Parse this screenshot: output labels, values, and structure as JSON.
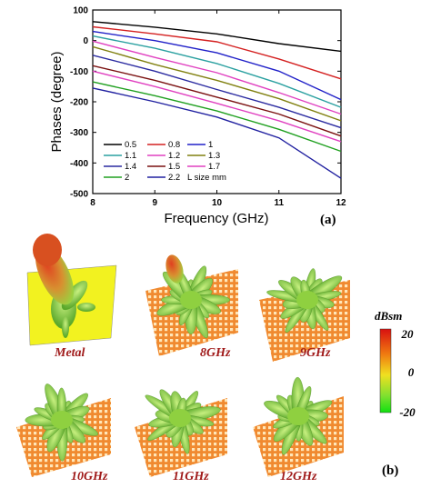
{
  "chart_data": {
    "type": "line",
    "panel_label": "(a)",
    "xlabel": "Frequency (GHz)",
    "ylabel": "Phases (degree)",
    "xlim": [
      8,
      12
    ],
    "ylim": [
      -500,
      100
    ],
    "xticks": [
      "8",
      "9",
      "10",
      "11",
      "12"
    ],
    "yticks": [
      "100",
      "0",
      "-100",
      "-200",
      "-300",
      "-400",
      "-500"
    ],
    "legend_title": "L size mm",
    "legend_location": "lower-left",
    "grid": false,
    "x": [
      8,
      9,
      10,
      11,
      12
    ],
    "series": [
      {
        "name": "0.5",
        "color": "#000000",
        "values": [
          62,
          44,
          22,
          -10,
          -35
        ]
      },
      {
        "name": "0.8",
        "color": "#d42020",
        "values": [
          45,
          22,
          -4,
          -60,
          -125
        ]
      },
      {
        "name": "1",
        "color": "#2020c8",
        "values": [
          30,
          0,
          -40,
          -100,
          -193
        ]
      },
      {
        "name": "1.1",
        "color": "#2aa0a0",
        "values": [
          15,
          -25,
          -75,
          -140,
          -218
        ]
      },
      {
        "name": "1.2",
        "color": "#e040c0",
        "values": [
          -2,
          -55,
          -105,
          -170,
          -240
        ]
      },
      {
        "name": "1.3",
        "color": "#808010",
        "values": [
          -20,
          -78,
          -130,
          -190,
          -262
        ]
      },
      {
        "name": "1.4",
        "color": "#2a2aa0",
        "values": [
          -48,
          -100,
          -160,
          -218,
          -285
        ]
      },
      {
        "name": "1.5",
        "color": "#7a1010",
        "values": [
          -82,
          -130,
          -185,
          -240,
          -312
        ]
      },
      {
        "name": "1.7",
        "color": "#e040c0",
        "values": [
          -100,
          -150,
          -205,
          -262,
          -330
        ]
      },
      {
        "name": "2",
        "color": "#20a020",
        "values": [
          -135,
          -180,
          -230,
          -290,
          -362
        ]
      },
      {
        "name": "2.2",
        "color": "#2020a0",
        "values": [
          -155,
          -200,
          -250,
          -318,
          -450
        ]
      }
    ]
  },
  "panel_b": {
    "label": "(b)",
    "colorbar": {
      "unit": "dBsm",
      "ticks": [
        "20",
        "0",
        "-20"
      ]
    },
    "plots": [
      {
        "caption": "Metal"
      },
      {
        "caption": "8GHz"
      },
      {
        "caption": "9GHz"
      },
      {
        "caption": "10GHz"
      },
      {
        "caption": "11GHz"
      },
      {
        "caption": "12GHz"
      }
    ]
  }
}
